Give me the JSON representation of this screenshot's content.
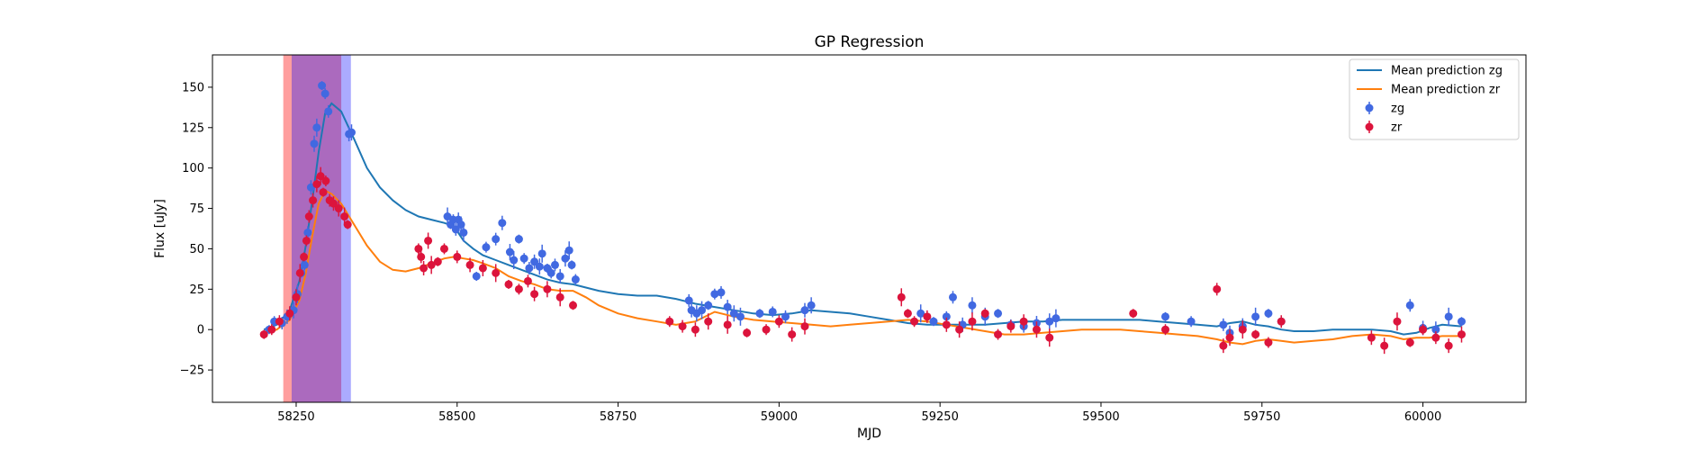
{
  "chart_data": {
    "type": "scatter",
    "title": "GP Regression",
    "xlabel": "MJD",
    "ylabel": "Flux [uJy]",
    "xlim": [
      58120,
      60160
    ],
    "ylim": [
      -45,
      170
    ],
    "xticks": [
      58250,
      58500,
      58750,
      59000,
      59250,
      59500,
      59750,
      60000
    ],
    "xtick_labels": [
      "58250",
      "58500",
      "58750",
      "59000",
      "59250",
      "59500",
      "59750",
      "60000"
    ],
    "yticks": [
      -25,
      0,
      25,
      50,
      75,
      100,
      125,
      150
    ],
    "ytick_labels": [
      "−25",
      "0",
      "25",
      "50",
      "75",
      "100",
      "125",
      "150"
    ],
    "grid": false,
    "legend_position": "top-right",
    "legend": [
      {
        "label": "Mean prediction zg",
        "kind": "line",
        "color": "#1f77b4"
      },
      {
        "label": "Mean prediction zr",
        "kind": "line",
        "color": "#ff7f0e"
      },
      {
        "label": "zg",
        "kind": "marker",
        "color": "#4169e1"
      },
      {
        "label": "zr",
        "kind": "marker",
        "color": "#dc143c"
      }
    ],
    "shaded_regions": [
      {
        "x0": 58230,
        "x1": 58320,
        "color": "#ff0000",
        "opacity": 0.38
      },
      {
        "x0": 58243,
        "x1": 58335,
        "color": "#0000ff",
        "opacity": 0.33
      }
    ],
    "series": [
      {
        "name": "Mean prediction zg",
        "kind": "line",
        "color": "#1f77b4",
        "x": [
          58200,
          58220,
          58240,
          58255,
          58265,
          58275,
          58285,
          58295,
          58305,
          58320,
          58340,
          58360,
          58380,
          58400,
          58420,
          58440,
          58460,
          58480,
          58495,
          58510,
          58525,
          58540,
          58560,
          58580,
          58600,
          58620,
          58640,
          58660,
          58680,
          58700,
          58720,
          58750,
          58780,
          58810,
          58840,
          58870,
          58900,
          58930,
          58960,
          58990,
          59020,
          59050,
          59080,
          59110,
          59140,
          59170,
          59200,
          59230,
          59260,
          59290,
          59320,
          59350,
          59380,
          59410,
          59440,
          59470,
          59500,
          59530,
          59560,
          59590,
          59620,
          59650,
          59680,
          59700,
          59720,
          59740,
          59760,
          59780,
          59800,
          59830,
          59860,
          59890,
          59920,
          59950,
          59970,
          59990,
          60010,
          60030,
          60060
        ],
        "y": [
          0,
          3,
          12,
          30,
          52,
          80,
          110,
          134,
          140,
          135,
          118,
          100,
          88,
          80,
          74,
          70,
          68,
          66,
          64,
          55,
          50,
          46,
          43,
          40,
          37,
          34,
          31,
          29,
          28,
          26,
          24,
          22,
          21,
          21,
          19,
          16,
          14,
          12,
          10,
          9,
          10,
          12,
          11,
          10,
          8,
          6,
          4,
          3,
          3,
          3,
          3,
          4,
          5,
          5,
          6,
          6,
          6,
          6,
          6,
          5,
          4,
          3,
          2,
          4,
          5,
          3,
          2,
          0,
          -1,
          -1,
          0,
          0,
          0,
          -1,
          -3,
          -2,
          1,
          3,
          2
        ]
      },
      {
        "name": "Mean prediction zr",
        "kind": "line",
        "color": "#ff7f0e",
        "x": [
          58200,
          58220,
          58240,
          58255,
          58265,
          58275,
          58285,
          58295,
          58305,
          58320,
          58340,
          58360,
          58380,
          58400,
          58420,
          58440,
          58460,
          58480,
          58495,
          58510,
          58525,
          58540,
          58560,
          58580,
          58600,
          58620,
          58640,
          58660,
          58680,
          58700,
          58720,
          58750,
          58780,
          58810,
          58840,
          58870,
          58900,
          58930,
          58960,
          58990,
          59020,
          59050,
          59080,
          59110,
          59140,
          59170,
          59200,
          59230,
          59260,
          59290,
          59320,
          59350,
          59380,
          59410,
          59440,
          59470,
          59500,
          59530,
          59560,
          59590,
          59620,
          59650,
          59680,
          59700,
          59720,
          59740,
          59760,
          59780,
          59800,
          59830,
          59860,
          59890,
          59920,
          59950,
          59970,
          59990,
          60010,
          60030,
          60060
        ],
        "y": [
          -2,
          0,
          6,
          18,
          35,
          58,
          78,
          86,
          84,
          78,
          65,
          52,
          42,
          37,
          36,
          38,
          41,
          44,
          45,
          44,
          43,
          41,
          38,
          33,
          30,
          28,
          25,
          24,
          24,
          20,
          15,
          10,
          7,
          5,
          3,
          5,
          11,
          8,
          6,
          5,
          4,
          3,
          2,
          3,
          4,
          5,
          6,
          5,
          3,
          1,
          -1,
          -3,
          -3,
          -2,
          -1,
          0,
          0,
          0,
          -1,
          -2,
          -3,
          -4,
          -6,
          -8,
          -9,
          -7,
          -6,
          -7,
          -8,
          -7,
          -6,
          -4,
          -3,
          -4,
          -6,
          -5,
          -5,
          -4,
          -4
        ]
      },
      {
        "name": "zg",
        "kind": "errorbar",
        "color": "#4169e1",
        "x": [
          58208,
          58216,
          58228,
          58236,
          58246,
          58252,
          58258,
          58263,
          58268,
          58273,
          58278,
          58282,
          58290,
          58295,
          58300,
          58332,
          58336,
          58485,
          58490,
          58494,
          58498,
          58502,
          58506,
          58510,
          58530,
          58545,
          58560,
          58570,
          58582,
          58588,
          58596,
          58604,
          58612,
          58620,
          58628,
          58632,
          58640,
          58646,
          58652,
          58660,
          58668,
          58674,
          58678,
          58684,
          58860,
          58864,
          58872,
          58880,
          58890,
          58900,
          58910,
          58920,
          58930,
          58940,
          58970,
          58990,
          59010,
          59040,
          59050,
          59220,
          59240,
          59260,
          59270,
          59285,
          59300,
          59320,
          59340,
          59360,
          59380,
          59400,
          59420,
          59430,
          59600,
          59640,
          59690,
          59700,
          59720,
          59740,
          59760,
          59780,
          59980,
          60000,
          60020,
          60040,
          60060
        ],
        "y": [
          0,
          5,
          4,
          8,
          12,
          22,
          35,
          40,
          60,
          88,
          115,
          125,
          151,
          146,
          135,
          121,
          122,
          70,
          65,
          68,
          62,
          68,
          65,
          60,
          33,
          51,
          56,
          66,
          48,
          43,
          56,
          44,
          38,
          42,
          39,
          47,
          38,
          35,
          40,
          33,
          44,
          49,
          40,
          31,
          18,
          12,
          10,
          12,
          15,
          22,
          23,
          14,
          10,
          8,
          10,
          11,
          8,
          12,
          15,
          10,
          5,
          8,
          20,
          3,
          15,
          8,
          10,
          3,
          2,
          4,
          5,
          7,
          8,
          5,
          3,
          -2,
          2,
          8,
          10,
          5,
          15,
          1,
          0,
          8,
          5
        ]
      },
      {
        "name": "zr",
        "kind": "errorbar",
        "color": "#dc143c",
        "x": [
          58200,
          58212,
          58224,
          58240,
          58250,
          58256,
          58262,
          58266,
          58270,
          58276,
          58282,
          58288,
          58292,
          58296,
          58302,
          58308,
          58316,
          58325,
          58330,
          58440,
          58444,
          58448,
          58455,
          58460,
          58470,
          58480,
          58500,
          58520,
          58540,
          58560,
          58580,
          58596,
          58610,
          58620,
          58640,
          58660,
          58680,
          58830,
          58850,
          58870,
          58890,
          58920,
          58950,
          58980,
          59000,
          59020,
          59040,
          59190,
          59200,
          59210,
          59230,
          59260,
          59280,
          59300,
          59320,
          59340,
          59360,
          59380,
          59400,
          59420,
          59550,
          59600,
          59680,
          59690,
          59700,
          59720,
          59740,
          59760,
          59780,
          59920,
          59940,
          59960,
          59980,
          60000,
          60020,
          60040,
          60060
        ],
        "y": [
          -3,
          0,
          5,
          10,
          20,
          35,
          45,
          55,
          70,
          80,
          90,
          95,
          85,
          92,
          80,
          78,
          75,
          70,
          65,
          50,
          45,
          38,
          55,
          40,
          42,
          50,
          45,
          40,
          38,
          35,
          28,
          25,
          30,
          22,
          25,
          20,
          15,
          5,
          2,
          0,
          5,
          3,
          -2,
          0,
          5,
          -3,
          2,
          20,
          10,
          5,
          8,
          3,
          0,
          5,
          10,
          -3,
          2,
          5,
          0,
          -5,
          10,
          0,
          25,
          -10,
          -5,
          0,
          -3,
          -8,
          5,
          -5,
          -10,
          5,
          -8,
          0,
          -5,
          -10,
          -3
        ]
      }
    ]
  }
}
